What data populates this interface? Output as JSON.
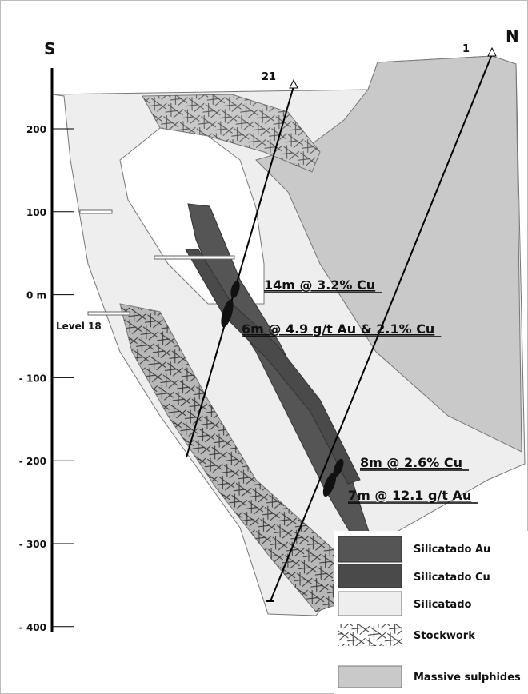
{
  "labels": {
    "south": "S",
    "north": "N",
    "hole_1": "1",
    "hole_21": "21",
    "level": "Level 18"
  },
  "scale": [
    "200",
    "100",
    "0 m",
    "- 100",
    "- 200",
    "- 300",
    "- 400"
  ],
  "intercepts": [
    "14m @ 3.2% Cu",
    "6m @ 4.9 g/t Au & 2.1% Cu",
    "8m @ 2.6% Cu",
    "7m @ 12.1 g/t Au"
  ],
  "legend": [
    "Silicatado Au",
    "Silicatado Cu",
    "Silicatado",
    "Stockwork",
    "Massive sulphides"
  ]
}
